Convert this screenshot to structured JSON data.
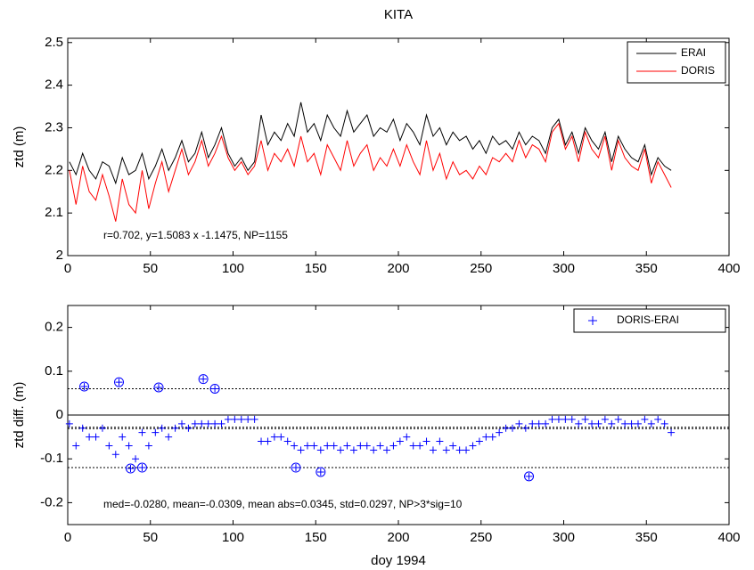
{
  "chart_data": [
    {
      "type": "line",
      "title": "KITA",
      "ylabel": "ztd (m)",
      "annotation": "r=0.702, y=1.5083 x -1.1475, NP=1155",
      "xlim": [
        0,
        400
      ],
      "xticks": [
        0,
        50,
        100,
        150,
        200,
        250,
        300,
        350,
        400
      ],
      "ylim": [
        2,
        2.51
      ],
      "yticks": [
        2,
        2.1,
        2.2,
        2.3,
        2.4,
        2.5
      ],
      "legend": "upper right",
      "x": [
        1,
        5,
        9,
        13,
        17,
        21,
        25,
        29,
        33,
        37,
        41,
        45,
        49,
        53,
        57,
        61,
        65,
        69,
        73,
        77,
        81,
        85,
        89,
        93,
        97,
        101,
        105,
        109,
        113,
        117,
        121,
        125,
        129,
        133,
        137,
        141,
        145,
        149,
        153,
        157,
        161,
        165,
        169,
        173,
        177,
        181,
        185,
        189,
        193,
        197,
        201,
        205,
        209,
        213,
        217,
        221,
        225,
        229,
        233,
        237,
        241,
        245,
        249,
        253,
        257,
        261,
        265,
        269,
        273,
        277,
        281,
        285,
        289,
        293,
        297,
        301,
        305,
        309,
        313,
        317,
        321,
        325,
        329,
        333,
        337,
        341,
        345,
        349,
        353,
        357,
        361,
        365
      ],
      "series": [
        {
          "name": "ERAI",
          "color": "#000000",
          "values": [
            2.22,
            2.19,
            2.24,
            2.2,
            2.18,
            2.22,
            2.21,
            2.17,
            2.23,
            2.19,
            2.2,
            2.24,
            2.18,
            2.21,
            2.25,
            2.2,
            2.23,
            2.27,
            2.22,
            2.24,
            2.29,
            2.23,
            2.26,
            2.3,
            2.24,
            2.21,
            2.23,
            2.2,
            2.22,
            2.33,
            2.26,
            2.29,
            2.27,
            2.31,
            2.28,
            2.36,
            2.29,
            2.31,
            2.27,
            2.33,
            2.3,
            2.28,
            2.34,
            2.29,
            2.31,
            2.33,
            2.28,
            2.3,
            2.29,
            2.32,
            2.27,
            2.31,
            2.29,
            2.26,
            2.33,
            2.28,
            2.3,
            2.26,
            2.29,
            2.27,
            2.28,
            2.25,
            2.27,
            2.24,
            2.28,
            2.26,
            2.27,
            2.25,
            2.29,
            2.26,
            2.28,
            2.27,
            2.24,
            2.3,
            2.32,
            2.26,
            2.29,
            2.24,
            2.3,
            2.27,
            2.25,
            2.29,
            2.22,
            2.28,
            2.25,
            2.23,
            2.22,
            2.26,
            2.19,
            2.23,
            2.21,
            2.2
          ]
        },
        {
          "name": "DORIS",
          "color": "#ff0000",
          "values": [
            2.2,
            2.12,
            2.21,
            2.15,
            2.13,
            2.19,
            2.14,
            2.08,
            2.18,
            2.12,
            2.1,
            2.2,
            2.11,
            2.17,
            2.22,
            2.15,
            2.2,
            2.25,
            2.19,
            2.22,
            2.27,
            2.21,
            2.24,
            2.28,
            2.23,
            2.2,
            2.22,
            2.19,
            2.21,
            2.27,
            2.2,
            2.24,
            2.22,
            2.25,
            2.21,
            2.28,
            2.22,
            2.24,
            2.19,
            2.26,
            2.23,
            2.2,
            2.27,
            2.21,
            2.24,
            2.26,
            2.2,
            2.23,
            2.21,
            2.25,
            2.21,
            2.26,
            2.22,
            2.19,
            2.27,
            2.2,
            2.24,
            2.18,
            2.22,
            2.19,
            2.2,
            2.18,
            2.21,
            2.19,
            2.23,
            2.22,
            2.24,
            2.22,
            2.27,
            2.23,
            2.26,
            2.25,
            2.22,
            2.29,
            2.31,
            2.25,
            2.28,
            2.22,
            2.29,
            2.25,
            2.23,
            2.28,
            2.2,
            2.27,
            2.23,
            2.21,
            2.2,
            2.25,
            2.17,
            2.22,
            2.19,
            2.16
          ]
        }
      ]
    },
    {
      "type": "scatter",
      "ylabel": "ztd diff. (m)",
      "xlabel": "doy 1994",
      "annotation": "med=-0.0280, mean=-0.0309, mean abs=0.0345, std=0.0297, NP>3*sig=10",
      "xlim": [
        0,
        400
      ],
      "xticks": [
        0,
        50,
        100,
        150,
        200,
        250,
        300,
        350,
        400
      ],
      "ylim": [
        -0.25,
        0.25
      ],
      "yticks": [
        -0.2,
        -0.1,
        0,
        0.1,
        0.2
      ],
      "legend": "upper right",
      "hlines": [
        {
          "value": 0.06,
          "style": "dotted"
        },
        {
          "value": 0,
          "style": "solid"
        },
        {
          "value": -0.028,
          "style": "dotted"
        },
        {
          "value": -0.031,
          "style": "dotted"
        },
        {
          "value": -0.12,
          "style": "dotted"
        }
      ],
      "x": [
        1,
        5,
        9,
        13,
        17,
        21,
        25,
        29,
        33,
        37,
        41,
        45,
        49,
        53,
        57,
        61,
        65,
        69,
        73,
        77,
        81,
        85,
        89,
        93,
        97,
        101,
        105,
        109,
        113,
        117,
        121,
        125,
        129,
        133,
        137,
        141,
        145,
        149,
        153,
        157,
        161,
        165,
        169,
        173,
        177,
        181,
        185,
        189,
        193,
        197,
        201,
        205,
        209,
        213,
        217,
        221,
        225,
        229,
        233,
        237,
        241,
        245,
        249,
        253,
        257,
        261,
        265,
        269,
        273,
        277,
        281,
        285,
        289,
        293,
        297,
        301,
        305,
        309,
        313,
        317,
        321,
        325,
        329,
        333,
        337,
        341,
        345,
        349,
        353,
        357,
        361,
        365
      ],
      "series": [
        {
          "name": "DORIS-ERAI",
          "color": "#0000ff",
          "values": [
            -0.02,
            -0.07,
            -0.03,
            -0.05,
            -0.05,
            -0.03,
            -0.07,
            -0.09,
            -0.05,
            -0.07,
            -0.1,
            -0.04,
            -0.07,
            -0.04,
            -0.03,
            -0.05,
            -0.03,
            -0.02,
            -0.03,
            -0.02,
            -0.02,
            -0.02,
            -0.02,
            -0.02,
            -0.01,
            -0.01,
            -0.01,
            -0.01,
            -0.01,
            -0.06,
            -0.06,
            -0.05,
            -0.05,
            -0.06,
            -0.07,
            -0.08,
            -0.07,
            -0.07,
            -0.08,
            -0.07,
            -0.07,
            -0.08,
            -0.07,
            -0.08,
            -0.07,
            -0.07,
            -0.08,
            -0.07,
            -0.08,
            -0.07,
            -0.06,
            -0.05,
            -0.07,
            -0.07,
            -0.06,
            -0.08,
            -0.06,
            -0.08,
            -0.07,
            -0.08,
            -0.08,
            -0.07,
            -0.06,
            -0.05,
            -0.05,
            -0.04,
            -0.03,
            -0.03,
            -0.02,
            -0.03,
            -0.02,
            -0.02,
            -0.02,
            -0.01,
            -0.01,
            -0.01,
            -0.01,
            -0.02,
            -0.01,
            -0.02,
            -0.02,
            -0.01,
            -0.02,
            -0.01,
            -0.02,
            -0.02,
            -0.02,
            -0.01,
            -0.02,
            -0.01,
            -0.02,
            -0.04
          ]
        }
      ],
      "outliers": {
        "x": [
          10,
          31,
          55,
          82,
          89,
          38,
          45,
          138,
          153,
          279
        ],
        "values": [
          0.065,
          0.075,
          0.063,
          0.082,
          0.06,
          -0.122,
          -0.12,
          -0.12,
          -0.13,
          -0.14
        ]
      }
    }
  ]
}
